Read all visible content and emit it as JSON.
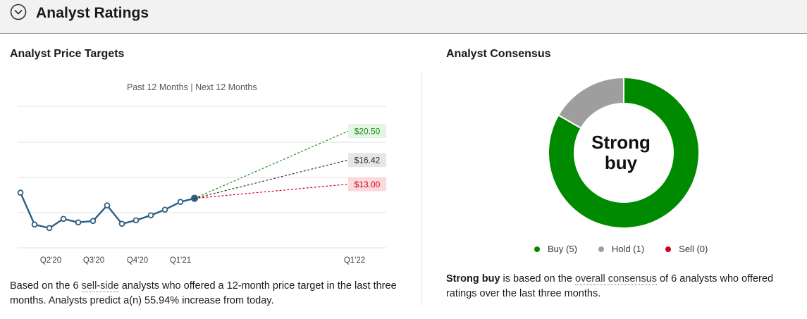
{
  "header": {
    "title": "Analyst Ratings"
  },
  "price_targets": {
    "title": "Analyst Price Targets",
    "period_toggle": {
      "past": "Past 12 Months",
      "separator": " | ",
      "next": "Next 12 Months"
    },
    "description": {
      "before_link": "Based on the 6 ",
      "link": "sell-side",
      "after_link": " analysts who offered a 12-month price target in the last three months. Analysts predict a(n) 55.94% increase from today."
    }
  },
  "chart_data": {
    "type": "line",
    "x_ticks": [
      "Q2'20",
      "Q3'20",
      "Q4'20",
      "Q1'21",
      "Q1'22"
    ],
    "ylim": [
      4,
      24
    ],
    "grid": true,
    "series": [
      {
        "values": [
          11.8,
          7.3,
          6.8,
          8.1,
          7.6,
          7.8,
          10.0,
          7.4,
          7.9,
          8.6,
          9.4,
          10.5,
          11.0
        ]
      }
    ],
    "targets": [
      {
        "label": "$20.50",
        "value": 20.5,
        "color": "#1e8a1e",
        "bg": "#e3f5e3"
      },
      {
        "label": "$16.42",
        "value": 16.42,
        "color": "#333333",
        "bg": "#e6e6e6"
      },
      {
        "label": "$13.00",
        "value": 13.0,
        "color": "#d0021b",
        "bg": "#fadadd"
      }
    ]
  },
  "consensus": {
    "title": "Analyst Consensus",
    "center_line1": "Strong",
    "center_line2": "buy",
    "ratings": [
      {
        "label": "Buy (5)",
        "count": 5,
        "color": "#008a00"
      },
      {
        "label": "Hold (1)",
        "count": 1,
        "color": "#9e9e9e"
      },
      {
        "label": "Sell (0)",
        "count": 0,
        "color": "#d0021b"
      }
    ],
    "description": {
      "bold": "Strong buy",
      "before_link": " is based on the ",
      "link": "overall consensus",
      "after_link": " of 6 analysts who offered ratings over the last three months."
    }
  }
}
